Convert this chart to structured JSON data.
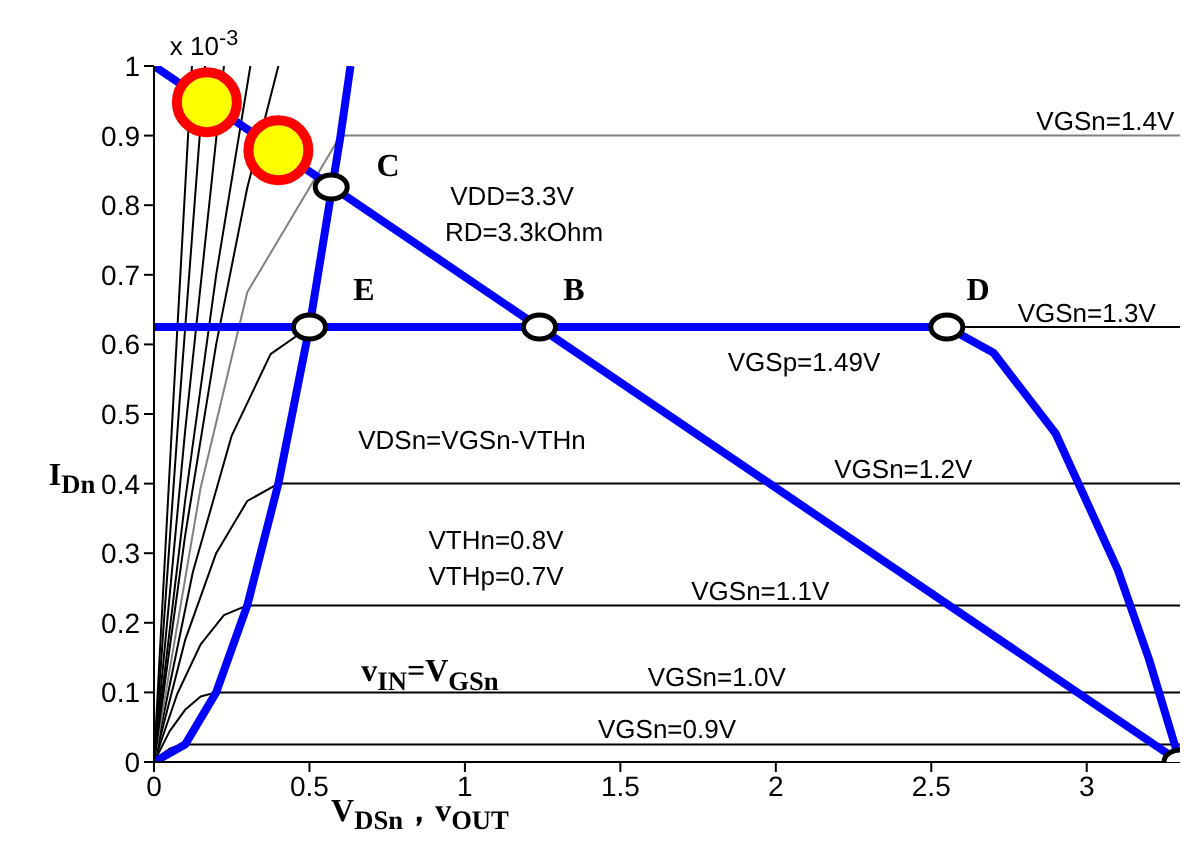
{
  "chart_data": {
    "type": "line",
    "xlabel": "V$_{DSn}$，v$_{OUT}$",
    "ylabel": "I$_{Dn}$",
    "xlim": [
      0,
      3.3
    ],
    "xticks": [
      0,
      0.5,
      1,
      1.5,
      2,
      2.5,
      3
    ],
    "ylim": [
      0,
      1
    ],
    "yticks": [
      0,
      0.1,
      0.2,
      0.3,
      0.4,
      0.5,
      0.6,
      0.7,
      0.8,
      0.9,
      1
    ],
    "series": [
      {
        "color": "#000000",
        "x": [
          0,
          0.025,
          0.05,
          0.075,
          0.1,
          3.3
        ],
        "values": [
          0,
          0.011,
          0.019,
          0.023,
          0.025,
          0.025
        ]
      },
      {
        "color": "#000000",
        "x": [
          0,
          0.05,
          0.1,
          0.15,
          0.2,
          3.3
        ],
        "values": [
          0,
          0.044,
          0.075,
          0.094,
          0.1,
          0.1
        ]
      },
      {
        "color": "#000000",
        "x": [
          0,
          0.075,
          0.15,
          0.225,
          0.3,
          3.3
        ],
        "values": [
          0,
          0.098,
          0.169,
          0.211,
          0.225,
          0.225
        ]
      },
      {
        "color": "#000000",
        "x": [
          0,
          0.1,
          0.2,
          0.3,
          0.4,
          3.3
        ],
        "values": [
          0,
          0.175,
          0.3,
          0.375,
          0.4,
          0.4
        ]
      },
      {
        "color": "#000000",
        "x": [
          0,
          0.125,
          0.25,
          0.375,
          0.5,
          3.3
        ],
        "values": [
          0,
          0.273,
          0.469,
          0.586,
          0.625,
          0.625
        ]
      },
      {
        "color": "#808080",
        "x": [
          0,
          0.15,
          0.3,
          0.45,
          0.6,
          3.3
        ],
        "values": [
          0,
          0.394,
          0.675,
          null,
          0.9,
          0.9
        ]
      },
      {
        "color": "#000000",
        "x": [
          0,
          0.1,
          0.2,
          0.3,
          0.4
        ],
        "values": [
          0,
          0.325,
          0.6,
          0.825,
          1
        ]
      },
      {
        "color": "#000000",
        "x": [
          0,
          0.1,
          0.2,
          0.31
        ],
        "values": [
          0,
          0.375,
          0.7,
          1
        ]
      },
      {
        "color": "#000000",
        "x": [
          0,
          0.1,
          0.225
        ],
        "values": [
          0,
          0.475,
          1
        ]
      },
      {
        "color": "#000000",
        "x": [
          0,
          0.08,
          0.164
        ],
        "values": [
          0,
          0.504,
          1
        ]
      },
      {
        "color": "#000000",
        "x": [
          0,
          0.06,
          0.122
        ],
        "values": [
          0,
          0.501,
          1
        ]
      },
      {
        "color": "#0000ff",
        "x": [
          0,
          0.1,
          0.2,
          0.3,
          0.4,
          0.5,
          0.6,
          0.632
        ],
        "values": [
          0,
          0.025,
          0.1,
          0.225,
          0.4,
          0.625,
          0.9,
          1
        ]
      },
      {
        "color": "#0000ff",
        "x": [
          0,
          3.3
        ],
        "values": [
          1,
          0
        ]
      },
      {
        "color": "#0000ff",
        "x": [
          0,
          2.55,
          2.7,
          2.9,
          3.1,
          3.2,
          3.3
        ],
        "values": [
          0.625,
          0.625,
          0.588,
          0.472,
          0.276,
          0.148,
          0
        ]
      },
      {
        "type": "scatter",
        "marker": "circle",
        "color": "#ffffff",
        "x": [
          0.57,
          0.5,
          1.24,
          2.55,
          3.3
        ],
        "values": [
          0.826,
          0.625,
          0.625,
          0.625,
          0
        ]
      },
      {
        "type": "scatter",
        "marker": "circle",
        "color": "#ffff00",
        "x": [
          0.17,
          0.4
        ],
        "values": [
          0.948,
          0.879
        ]
      }
    ],
    "annotations": [
      {
        "text": "VGSn=1.4V",
        "x": 3.06,
        "y": 0.9
      },
      {
        "text": "VGSn=1.3V",
        "x": 3.0,
        "y": 0.625
      },
      {
        "text": "VGSn=1.2V",
        "x": 2.41,
        "y": 0.4
      },
      {
        "text": "VGSn=1.1V",
        "x": 1.95,
        "y": 0.225
      },
      {
        "text": "VGSn=1.0V",
        "x": 1.81,
        "y": 0.1
      },
      {
        "text": "VGSn=0.9V",
        "x": 1.65,
        "y": 0.025
      },
      "C",
      "E",
      "B",
      "D",
      "x 10$^{-3}$",
      "VDD=3.3V",
      "RD=3.3kOhm",
      "VGSp=1.49V",
      "VDSn=VGSn-VTHn",
      "VTHn=0.8V",
      "VTHp=0.7V",
      "v$_{IN}$=V$_{GSn}$"
    ]
  }
}
